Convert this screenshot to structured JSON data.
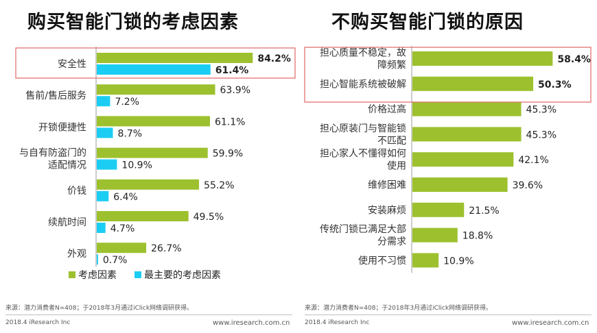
{
  "charts": {
    "left_title": "购买智能门锁的考虑因素",
    "right_title": "不购买智能门锁的原因"
  },
  "chart_data": [
    {
      "type": "bar",
      "title": "购买智能门锁的考虑因素",
      "categories": [
        [
          "安全性"
        ],
        [
          "售前/售后服务"
        ],
        [
          "开锁便捷性"
        ],
        [
          "与自有防盗门的",
          "适配情况"
        ],
        [
          "价钱"
        ],
        [
          "续航时间"
        ],
        [
          "外观"
        ]
      ],
      "series": [
        {
          "name": "考虑因素",
          "color": "#9dc12e",
          "values": [
            84.2,
            63.9,
            61.1,
            59.9,
            55.2,
            49.5,
            26.7
          ]
        },
        {
          "name": "最主要的考虑因素",
          "color": "#1ccdf3",
          "values": [
            61.4,
            7.2,
            8.7,
            10.9,
            6.4,
            4.7,
            0.7
          ]
        }
      ],
      "value_format": "%",
      "highlighted_category_index": 0,
      "legend": "bottom",
      "xlim": [
        0,
        100
      ]
    },
    {
      "type": "bar",
      "title": "不购买智能门锁的原因",
      "categories": [
        [
          "担心质量不稳定，故",
          "障频繁"
        ],
        [
          "担心智能系统被破解"
        ],
        [
          "价格过高"
        ],
        [
          "担心原装门与智能锁",
          "不匹配"
        ],
        [
          "担心家人不懂得如何",
          "使用"
        ],
        [
          "维修困难"
        ],
        [
          "安装麻烦"
        ],
        [
          "传统门锁已满足大部",
          "分需求"
        ],
        [
          "使用不习惯"
        ]
      ],
      "series": [
        {
          "color": "#9dc12e",
          "values": [
            58.4,
            50.3,
            45.3,
            45.3,
            42.1,
            39.6,
            21.5,
            18.8,
            10.9
          ]
        }
      ],
      "value_format": "%",
      "highlighted_category_indices": [
        0,
        1
      ],
      "xlim": [
        0,
        70
      ]
    }
  ],
  "footer": {
    "left_source": "来源：潜力消费者N=408；于2018年3月通过iClick网络调研获得。",
    "right_source": "来源：潜力消费者N=408；于2018年3月通过iClick网络调研获得。",
    "left_copyright": "2018.4 iResearch Inc",
    "left_url": "www.iresearch.com.cn",
    "right_copyright": "2018.4 iResearch Inc",
    "right_url": "www.iresearch.com.cn"
  },
  "colors": {
    "highlight_box": "#e06666",
    "axis": "#999999"
  }
}
